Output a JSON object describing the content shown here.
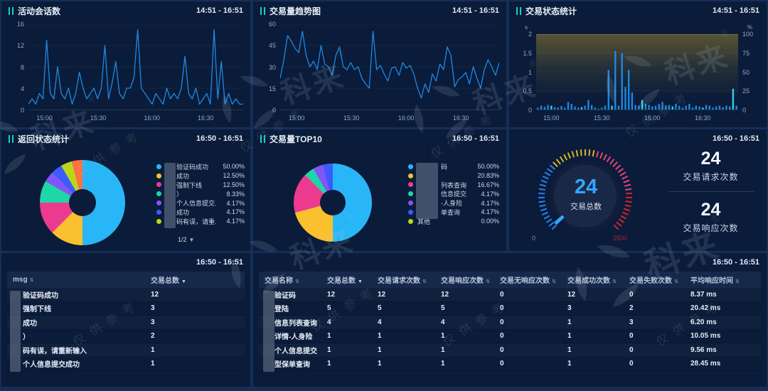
{
  "watermark": {
    "brand": "科来",
    "reg": "®",
    "caption": "仅供参考"
  },
  "panels": {
    "sessions": {
      "title": "活动会话数",
      "time": "14:51 - 16:51"
    },
    "volume_trend": {
      "title": "交易量趋势图",
      "time": "14:51 - 16:51"
    },
    "status_stats": {
      "title": "交易状态统计",
      "time": "14:51 - 16:51"
    },
    "return_status": {
      "title": "返回状态统计",
      "time": "16:50 - 16:51",
      "pager": "1/2",
      "legend": [
        {
          "color": "#29b6f6",
          "label": "验证码成功",
          "pct": "50.00%"
        },
        {
          "color": "#fbc02d",
          "label": "成功",
          "pct": "12.50%"
        },
        {
          "color": "#ec3b8e",
          "label": "强制下线",
          "pct": "12.50%"
        },
        {
          "color": "#1ed6a6",
          "label": "）",
          "pct": "8.33%"
        },
        {
          "color": "#8455f6",
          "label": "个人信息提交.",
          "pct": "4.17%"
        },
        {
          "color": "#3d5afe",
          "label": "成功",
          "pct": "4.17%"
        },
        {
          "color": "#b9d719",
          "label": "码有误，请重.",
          "pct": "4.17%"
        }
      ]
    },
    "top10": {
      "title": "交易量TOP10",
      "time": "16:50 - 16:51",
      "legend": [
        {
          "color": "#29b6f6",
          "label": "码",
          "pct": "50.00%"
        },
        {
          "color": "#fbc02d",
          "label": "",
          "pct": "20.83%"
        },
        {
          "color": "#ec3b8e",
          "label": "列表查询",
          "pct": "16.67%"
        },
        {
          "color": "#1ed6a6",
          "label": "信息提交",
          "pct": "4.17%"
        },
        {
          "color": "#8455f6",
          "label": "-人身险",
          "pct": "4.17%"
        },
        {
          "color": "#3d5afe",
          "label": "单查询",
          "pct": "4.17%"
        },
        {
          "color": "#b9d719",
          "label": "其他",
          "pct": "0.00%",
          "pad": false
        }
      ]
    },
    "gauge_panel": {
      "time": "16:50 - 16:51",
      "value": "24",
      "label": "交易总数",
      "min": "0",
      "max": "2500",
      "stats": [
        {
          "value": "24",
          "label": "交易请求次数"
        },
        {
          "value": "24",
          "label": "交易响应次数"
        }
      ]
    },
    "msg_table": {
      "time": "16:50 - 16:51",
      "columns": [
        {
          "label": "msg",
          "sort": "both"
        },
        {
          "label": "交易总数",
          "sort": "desc"
        }
      ],
      "rows": [
        [
          "验证码成功",
          "12"
        ],
        [
          "强制下线",
          "3"
        ],
        [
          "成功",
          "3"
        ],
        [
          "）",
          "2"
        ],
        [
          "码有误，请重新输入",
          "1"
        ],
        [
          "个人信息提交成功",
          "1"
        ]
      ]
    },
    "tx_table": {
      "time": "16:50 - 16:51",
      "columns": [
        {
          "label": "交易名称",
          "sort": "both"
        },
        {
          "label": "交易总数",
          "sort": "desc"
        },
        {
          "label": "交易请求次数",
          "sort": "both"
        },
        {
          "label": "交易响应次数",
          "sort": "both"
        },
        {
          "label": "交易无响应次数",
          "sort": "both"
        },
        {
          "label": "交易成功次数",
          "sort": "both"
        },
        {
          "label": "交易失败次数",
          "sort": "both"
        },
        {
          "label": "平均响应时间",
          "sort": "both"
        }
      ],
      "rows": [
        [
          "验证码",
          "12",
          "12",
          "12",
          "0",
          "12",
          "0",
          "8.37 ms"
        ],
        [
          "登陆",
          "5",
          "5",
          "5",
          "0",
          "3",
          "2",
          "20.42 ms"
        ],
        [
          "信息列表查询",
          "4",
          "4",
          "4",
          "0",
          "1",
          "3",
          "6.20 ms"
        ],
        [
          "详情-人身险",
          "1",
          "1",
          "1",
          "0",
          "1",
          "0",
          "10.05 ms"
        ],
        [
          "个人信息提交",
          "1",
          "1",
          "1",
          "0",
          "1",
          "0",
          "9.56 ms"
        ],
        [
          "型保单查询",
          "1",
          "1",
          "1",
          "0",
          "1",
          "0",
          "28.45 ms"
        ]
      ]
    }
  },
  "chart_data": [
    {
      "id": "sessions",
      "type": "line",
      "title": "活动会话数",
      "x_ticks": [
        "15:00",
        "15:30",
        "16:00",
        "16:30"
      ],
      "x_tick_pos": [
        0.075,
        0.325,
        0.575,
        0.825
      ],
      "ylim": [
        0,
        16
      ],
      "y_ticks": [
        0,
        4,
        8,
        12,
        16
      ],
      "line_color": "#1e88e5",
      "grid": true,
      "legend_position": "none",
      "values": [
        1,
        2,
        1,
        3,
        2,
        13,
        3,
        2,
        8,
        3,
        2,
        4,
        1,
        3,
        7,
        4,
        2,
        3,
        4,
        2,
        4,
        12,
        2,
        5,
        9,
        3,
        2,
        4,
        4,
        6,
        15,
        4,
        3,
        2,
        1,
        3,
        2,
        1,
        4,
        2,
        3,
        2,
        4,
        10,
        3,
        2,
        4,
        1,
        2,
        3,
        1,
        15,
        2,
        9,
        1,
        3,
        1,
        2,
        1,
        1
      ]
    },
    {
      "id": "volume",
      "type": "line",
      "title": "交易量趋势图",
      "x_ticks": [
        "15:00",
        "15:30",
        "16:00",
        "16:30"
      ],
      "x_tick_pos": [
        0.075,
        0.325,
        0.575,
        0.825
      ],
      "ylim": [
        0,
        60
      ],
      "y_ticks": [
        0,
        15,
        30,
        45,
        60
      ],
      "line_color": "#1e88e5",
      "grid": true,
      "legend_position": "none",
      "values": [
        22,
        35,
        52,
        48,
        43,
        40,
        55,
        38,
        30,
        34,
        28,
        45,
        32,
        30,
        24,
        38,
        44,
        30,
        28,
        33,
        28,
        30,
        22,
        18,
        15,
        55,
        28,
        31,
        25,
        20,
        29,
        30,
        24,
        33,
        29,
        31,
        25,
        15,
        8,
        18,
        12,
        25,
        20,
        32,
        28,
        44,
        38,
        16,
        21,
        23,
        26,
        18,
        30,
        22,
        15,
        28,
        35,
        30,
        24,
        33
      ]
    },
    {
      "id": "status",
      "type": "bar-area",
      "title": "交易状态统计",
      "x_ticks": [
        "15:00",
        "15:30",
        "16:00",
        "16:30"
      ],
      "x_tick_pos": [
        0.075,
        0.325,
        0.575,
        0.825
      ],
      "left_unit": "s",
      "left_lim": [
        0,
        2
      ],
      "left_ticks": [
        0,
        0.5,
        1,
        1.5,
        2
      ],
      "right_unit": "%",
      "right_lim": [
        0,
        100
      ],
      "right_ticks": [
        0,
        25,
        50,
        75,
        100
      ],
      "area_value": 100,
      "area_color": "#968030",
      "bar_color": "#1e88e5",
      "bar_color_alt": "#2fd3e8",
      "bar_values": [
        0.05,
        0.1,
        0.07,
        0.12,
        0.1,
        0.06,
        0.05,
        0.09,
        0.05,
        0.2,
        0.15,
        0.08,
        0.05,
        0.06,
        0.1,
        0.25,
        0.12,
        0.05,
        0.02,
        0.05,
        0.1,
        1.05,
        0.1,
        1.55,
        0.1,
        1.5,
        0.6,
        1.05,
        0.45,
        0.12,
        0.1,
        0.25,
        0.15,
        0.12,
        0.08,
        0.1,
        0.15,
        0.2,
        0.1,
        0.12,
        0.08,
        0.15,
        0.1,
        0.05,
        0.1,
        0.15,
        0.05,
        0.1,
        0.08,
        0.05,
        0.12,
        0.1,
        0.05,
        0.08,
        0.1,
        0.06,
        0.1,
        0.08,
        0.55,
        0.1
      ]
    },
    {
      "id": "return_pie",
      "type": "pie",
      "title": "返回状态统计",
      "hole": 0.32,
      "slices": [
        {
          "label": "验证码成功",
          "pct": 50.0,
          "color": "#29b6f6"
        },
        {
          "label": "成功",
          "pct": 12.5,
          "color": "#fbc02d"
        },
        {
          "label": "强制下线",
          "pct": 12.5,
          "color": "#ec3b8e"
        },
        {
          "label": "）",
          "pct": 8.33,
          "color": "#1ed6a6"
        },
        {
          "label": "个人信息提交.",
          "pct": 4.17,
          "color": "#8455f6"
        },
        {
          "label": "成功",
          "pct": 4.17,
          "color": "#3d5afe"
        },
        {
          "label": "码有误，请重.",
          "pct": 4.17,
          "color": "#b9d719"
        },
        {
          "label": "",
          "pct": 4.16,
          "color": "#ff7043"
        }
      ]
    },
    {
      "id": "top10_pie",
      "type": "pie",
      "title": "交易量TOP10",
      "hole": 0.33,
      "slices": [
        {
          "label": "码",
          "pct": 50.0,
          "color": "#29b6f6"
        },
        {
          "label": "",
          "pct": 20.83,
          "color": "#fbc02d"
        },
        {
          "label": "列表查询",
          "pct": 16.67,
          "color": "#ec3b8e"
        },
        {
          "label": "信息提交",
          "pct": 4.17,
          "color": "#1ed6a6"
        },
        {
          "label": "-人身险",
          "pct": 4.17,
          "color": "#8455f6"
        },
        {
          "label": "单查询",
          "pct": 4.16,
          "color": "#3d5afe"
        },
        {
          "label": "其他",
          "pct": 0.0,
          "color": "#b9d719"
        }
      ]
    },
    {
      "id": "gauge",
      "type": "gauge",
      "value": 24,
      "min": 0,
      "max": 2500,
      "label": "交易总数",
      "tick_colors": [
        "#2f7ded",
        "#d8b42a",
        "#e8447a",
        "#d3242e"
      ]
    }
  ]
}
